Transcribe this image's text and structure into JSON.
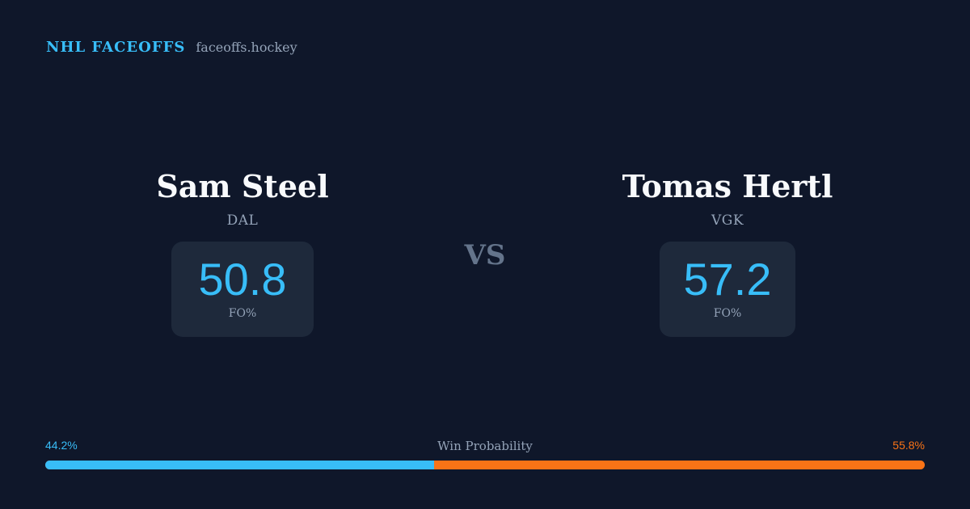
{
  "brand": {
    "name": "NHL FACEOFFS",
    "domain": "faceoffs.hockey"
  },
  "matchup": {
    "vs_label": "VS",
    "left_player": {
      "name": "Sam Steel",
      "team": "DAL",
      "stat_value": "50.8",
      "stat_label": "FO%"
    },
    "right_player": {
      "name": "Tomas Hertl",
      "team": "VGK",
      "stat_value": "57.2",
      "stat_label": "FO%"
    }
  },
  "win_probability": {
    "title": "Win Probability",
    "left_label": "44.2%",
    "right_label": "55.8%",
    "left_value": 44.2,
    "right_value": 55.8
  },
  "colors": {
    "background": "#0f172a",
    "accent_blue": "#38bdf8",
    "accent_orange": "#f97316",
    "card": "#1e293b",
    "muted_text": "#94a3b8",
    "vs_text": "#64748b"
  }
}
